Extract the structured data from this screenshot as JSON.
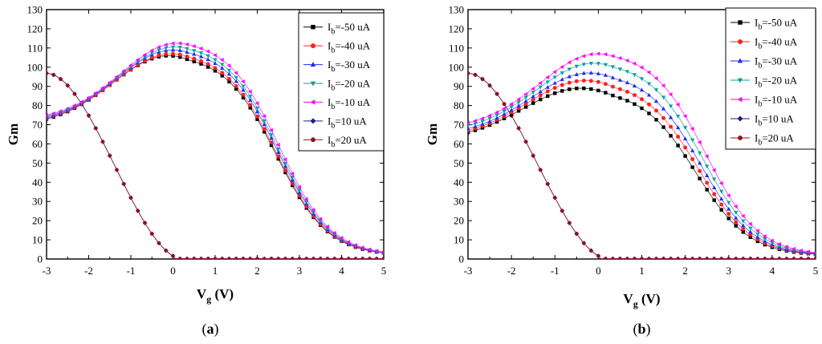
{
  "chart_data": [
    {
      "panel": "a",
      "caption_letter": "a",
      "type": "line",
      "xlabel_main": "V",
      "xlabel_sub": "g",
      "xlabel_unit": " (V)",
      "ylabel": "Gm",
      "xlim": [
        -3,
        5
      ],
      "ylim": [
        0,
        130
      ],
      "xticks": [
        -3,
        -2,
        -1,
        0,
        1,
        2,
        3,
        4,
        5
      ],
      "yticks": [
        0,
        10,
        20,
        30,
        40,
        50,
        60,
        70,
        80,
        90,
        100,
        110,
        120,
        130
      ],
      "legend_position": "top-right",
      "series": [
        {
          "name": "-50 uA",
          "legend_prefix": "I",
          "legend_sub": "b",
          "color": "#000000",
          "marker": "square",
          "peak_x": -0.1,
          "peak_y": 106,
          "start_y": 73
        },
        {
          "name": "-40 uA",
          "legend_prefix": "I",
          "legend_sub": "b",
          "color": "#ff2020",
          "marker": "circle",
          "peak_x": -0.05,
          "peak_y": 107,
          "start_y": 73.5
        },
        {
          "name": "-30 uA",
          "legend_prefix": "I",
          "legend_sub": "b",
          "color": "#1c2cff",
          "marker": "triangle-up",
          "peak_x": 0.0,
          "peak_y": 109,
          "start_y": 74
        },
        {
          "name": "-20 uA",
          "legend_prefix": "I",
          "legend_sub": "b",
          "color": "#00a0a0",
          "marker": "triangle-down",
          "peak_x": 0.05,
          "peak_y": 110.5,
          "start_y": 74.5
        },
        {
          "name": "-10 uA",
          "legend_prefix": "I",
          "legend_sub": "b",
          "color": "#ff00ff",
          "marker": "triangle-left",
          "peak_x": 0.1,
          "peak_y": 112.5,
          "start_y": 75
        },
        {
          "name": "10 uA",
          "legend_prefix": "I",
          "legend_sub": "b",
          "color": "#1a1a90",
          "marker": "diamond",
          "decay": true
        },
        {
          "name": "20 uA",
          "legend_prefix": "I",
          "legend_sub": "b",
          "color": "#901020",
          "marker": "hexagon",
          "decay": true
        }
      ]
    },
    {
      "panel": "b",
      "caption_letter": "b",
      "type": "line",
      "xlabel_main": "V",
      "xlabel_sub": "g",
      "xlabel_unit": " (V)",
      "ylabel": "Gm",
      "xlim": [
        -3,
        5
      ],
      "ylim": [
        0,
        130
      ],
      "xticks": [
        -3,
        -2,
        -1,
        0,
        1,
        2,
        3,
        4,
        5
      ],
      "yticks": [
        0,
        10,
        20,
        30,
        40,
        50,
        60,
        70,
        80,
        90,
        100,
        110,
        120,
        130
      ],
      "legend_position": "top-right",
      "series": [
        {
          "name": "-50 uA",
          "legend_prefix": "I",
          "legend_sub": "b",
          "color": "#000000",
          "marker": "square",
          "peak_x": -0.4,
          "peak_y": 89,
          "start_y": 66
        },
        {
          "name": "-40 uA",
          "legend_prefix": "I",
          "legend_sub": "b",
          "color": "#ff2020",
          "marker": "circle",
          "peak_x": -0.3,
          "peak_y": 93,
          "start_y": 67
        },
        {
          "name": "-30 uA",
          "legend_prefix": "I",
          "legend_sub": "b",
          "color": "#1c2cff",
          "marker": "triangle-up",
          "peak_x": -0.2,
          "peak_y": 97,
          "start_y": 68
        },
        {
          "name": "-20 uA",
          "legend_prefix": "I",
          "legend_sub": "b",
          "color": "#00a0a0",
          "marker": "triangle-down",
          "peak_x": -0.1,
          "peak_y": 102,
          "start_y": 69.5
        },
        {
          "name": "-10 uA",
          "legend_prefix": "I",
          "legend_sub": "b",
          "color": "#ff00ff",
          "marker": "triangle-left",
          "peak_x": 0.0,
          "peak_y": 107,
          "start_y": 71
        },
        {
          "name": "10 uA",
          "legend_prefix": "I",
          "legend_sub": "b",
          "color": "#1a1a90",
          "marker": "diamond",
          "decay": true
        },
        {
          "name": "20 uA",
          "legend_prefix": "I",
          "legend_sub": "b",
          "color": "#901020",
          "marker": "hexagon",
          "decay": true
        }
      ]
    }
  ]
}
